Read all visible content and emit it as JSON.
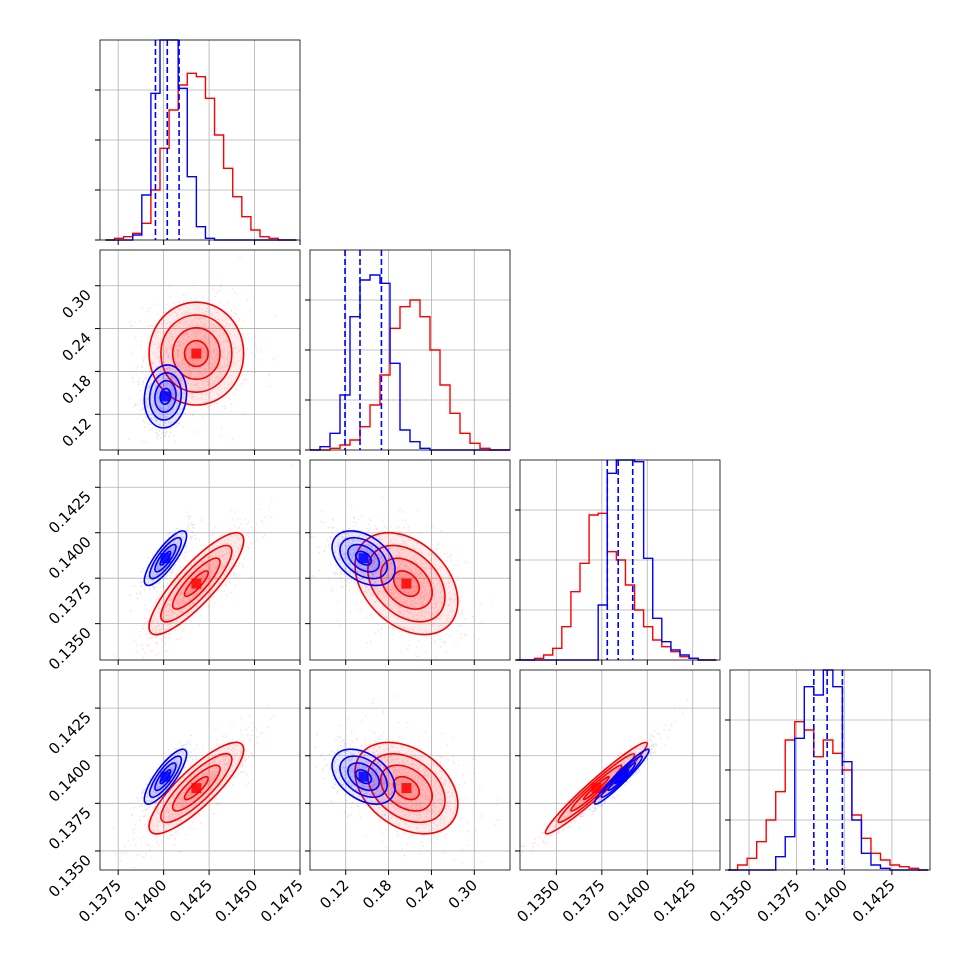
{
  "colors": {
    "blue": "#0000ff",
    "red": "#ff0000",
    "grid": "#b0b0b0",
    "axis": "#000000"
  },
  "chart_data": {
    "type": "corner",
    "grid": true,
    "series": [
      {
        "name": "",
        "color": "#0000ff"
      },
      {
        "name": "",
        "color": "#ff0000"
      }
    ],
    "parameters": [
      {
        "range": [
          0.1365,
          0.1475
        ],
        "ticks": [
          "0.1375",
          "0.1400",
          "0.1425",
          "0.1450",
          "0.1475"
        ],
        "tick_values": [
          0.1375,
          0.14,
          0.1425,
          0.145,
          0.1475
        ]
      },
      {
        "range": [
          0.07,
          0.35
        ],
        "ticks": [
          "0.12",
          "0.18",
          "0.24",
          "0.30"
        ],
        "tick_values": [
          0.12,
          0.18,
          0.24,
          0.3
        ]
      },
      {
        "range": [
          0.133,
          0.144
        ],
        "ticks": [
          "0.1350",
          "0.1375",
          "0.1400",
          "0.1425"
        ],
        "tick_values": [
          0.135,
          0.1375,
          0.14,
          0.1425
        ]
      },
      {
        "range": [
          0.134,
          0.1445
        ],
        "ticks": [
          "0.1350",
          "0.1375",
          "0.1400",
          "0.1425"
        ],
        "tick_values": [
          0.135,
          0.1375,
          0.14,
          0.1425
        ]
      }
    ],
    "histograms": [
      {
        "blue": {
          "edges": [
            0.1368,
            0.1373,
            0.1378,
            0.1383,
            0.1388,
            0.1393,
            0.1398,
            0.1403,
            0.1408,
            0.1413,
            0.1418,
            0.1423,
            0.1428,
            0.1433,
            0.1438,
            0.1443,
            0.1448,
            0.1453,
            0.1458,
            0.1463,
            0.1468,
            0.1473
          ],
          "counts": [
            0,
            0,
            0,
            0.03,
            0.27,
            0.88,
            1.2,
            1.2,
            0.91,
            0.38,
            0.08,
            0.01,
            0,
            0,
            0,
            0,
            0,
            0,
            0,
            0,
            0
          ]
        },
        "red": {
          "edges": [
            0.1368,
            0.1373,
            0.1378,
            0.1383,
            0.1388,
            0.1393,
            0.1398,
            0.1403,
            0.1408,
            0.1413,
            0.1418,
            0.1423,
            0.1428,
            0.1433,
            0.1438,
            0.1443,
            0.1448,
            0.1453,
            0.1458,
            0.1463,
            0.1468,
            0.1473
          ],
          "counts": [
            0,
            0.01,
            0.02,
            0.04,
            0.1,
            0.3,
            0.55,
            0.78,
            0.93,
            1.0,
            0.98,
            0.85,
            0.63,
            0.43,
            0.26,
            0.14,
            0.06,
            0.02,
            0.01,
            0,
            0
          ]
        },
        "quantiles": [
          0.13955,
          0.1402,
          0.14085
        ]
      },
      {
        "blue": {
          "edges": [
            0.07,
            0.084,
            0.098,
            0.112,
            0.126,
            0.14,
            0.154,
            0.168,
            0.182,
            0.196,
            0.21,
            0.224,
            0.238,
            0.252,
            0.266,
            0.28,
            0.294,
            0.308,
            0.322,
            0.336,
            0.35
          ],
          "counts": [
            0,
            0.02,
            0.1,
            0.33,
            0.8,
            1.02,
            1.05,
            1.0,
            0.52,
            0.12,
            0.05,
            0.01,
            0,
            0,
            0,
            0,
            0,
            0,
            0,
            0
          ]
        },
        "red": {
          "edges": [
            0.07,
            0.084,
            0.098,
            0.112,
            0.126,
            0.14,
            0.154,
            0.168,
            0.182,
            0.196,
            0.21,
            0.224,
            0.238,
            0.252,
            0.266,
            0.28,
            0.294,
            0.308,
            0.322,
            0.336,
            0.35
          ],
          "counts": [
            0,
            0,
            0.01,
            0.03,
            0.06,
            0.14,
            0.27,
            0.45,
            0.73,
            0.86,
            0.9,
            0.8,
            0.6,
            0.39,
            0.22,
            0.1,
            0.04,
            0.01,
            0,
            0
          ]
        },
        "quantiles": [
          0.119,
          0.14,
          0.17
        ]
      },
      {
        "blue": {
          "edges": [
            0.1328,
            0.1333,
            0.1338,
            0.1343,
            0.1348,
            0.1353,
            0.1358,
            0.1363,
            0.1368,
            0.1373,
            0.1378,
            0.1383,
            0.1388,
            0.1393,
            0.1398,
            0.1403,
            0.1408,
            0.1413,
            0.1418,
            0.1423,
            0.1428,
            0.1433,
            0.1438
          ],
          "counts": [
            0,
            0,
            0,
            0,
            0,
            0,
            0,
            0,
            0,
            0.33,
            1.12,
            1.2,
            1.2,
            1.19,
            0.61,
            0.25,
            0.11,
            0.06,
            0.03,
            0.01,
            0,
            0
          ]
        },
        "red": {
          "edges": [
            0.1328,
            0.1333,
            0.1338,
            0.1343,
            0.1348,
            0.1353,
            0.1358,
            0.1363,
            0.1368,
            0.1373,
            0.1378,
            0.1383,
            0.1388,
            0.1393,
            0.1398,
            0.1403,
            0.1408,
            0.1413,
            0.1418,
            0.1423,
            0.1428,
            0.1433,
            0.1438
          ],
          "counts": [
            0,
            0,
            0.01,
            0.03,
            0.07,
            0.2,
            0.41,
            0.58,
            0.87,
            0.88,
            0.65,
            0.6,
            0.45,
            0.3,
            0.2,
            0.12,
            0.08,
            0.05,
            0.02,
            0.01,
            0,
            0
          ]
        },
        "quantiles": [
          0.1378,
          0.1384,
          0.1392
        ]
      },
      {
        "blue": {
          "edges": [
            0.1339,
            0.1344,
            0.1349,
            0.1354,
            0.1359,
            0.1364,
            0.1369,
            0.1374,
            0.1379,
            0.1384,
            0.1389,
            0.1394,
            0.1399,
            0.1404,
            0.1409,
            0.1414,
            0.1419,
            0.1424,
            0.1429,
            0.1434,
            0.1439,
            0.1444
          ],
          "counts": [
            0,
            0,
            0,
            0,
            0,
            0.08,
            0.2,
            0.79,
            1.1,
            1.05,
            1.2,
            1.1,
            0.65,
            0.3,
            0.1,
            0.03,
            0.01,
            0,
            0,
            0,
            0
          ]
        },
        "red": {
          "edges": [
            0.1339,
            0.1344,
            0.1349,
            0.1354,
            0.1359,
            0.1364,
            0.1369,
            0.1374,
            0.1379,
            0.1384,
            0.1389,
            0.1394,
            0.1399,
            0.1404,
            0.1409,
            0.1414,
            0.1419,
            0.1424,
            0.1429,
            0.1434,
            0.1439,
            0.1444
          ],
          "counts": [
            0,
            0.03,
            0.07,
            0.17,
            0.3,
            0.47,
            0.78,
            0.89,
            0.84,
            0.68,
            0.78,
            0.7,
            0.6,
            0.33,
            0.19,
            0.1,
            0.06,
            0.03,
            0.02,
            0.01,
            0
          ]
        },
        "quantiles": [
          0.1384,
          0.1391,
          0.1399
        ]
      }
    ],
    "pairs": [
      {
        "row": 1,
        "col": 0,
        "blue": {
          "mean": [
            0.1401,
            0.145
          ],
          "sd": [
            0.00058,
            0.022
          ],
          "rho": 0.1
        },
        "red": {
          "mean": [
            0.1418,
            0.205
          ],
          "sd": [
            0.0013,
            0.036
          ],
          "rho": 0.0
        }
      },
      {
        "row": 2,
        "col": 0,
        "blue": {
          "mean": [
            0.1401,
            0.1386
          ],
          "sd": [
            0.00058,
            0.00075
          ],
          "rho": 0.82
        },
        "red": {
          "mean": [
            0.1418,
            0.1372
          ],
          "sd": [
            0.0013,
            0.0014
          ],
          "rho": 0.85
        }
      },
      {
        "row": 2,
        "col": 1,
        "blue": {
          "mean": [
            0.145,
            0.1386
          ],
          "sd": [
            0.022,
            0.00075
          ],
          "rho": -0.4
        },
        "red": {
          "mean": [
            0.205,
            0.1372
          ],
          "sd": [
            0.036,
            0.0014
          ],
          "rho": -0.35
        }
      },
      {
        "row": 3,
        "col": 0,
        "blue": {
          "mean": [
            0.1401,
            0.1389
          ],
          "sd": [
            0.00058,
            0.00072
          ],
          "rho": 0.82
        },
        "red": {
          "mean": [
            0.1418,
            0.1383
          ],
          "sd": [
            0.0013,
            0.0012
          ],
          "rho": 0.84
        }
      },
      {
        "row": 3,
        "col": 1,
        "blue": {
          "mean": [
            0.145,
            0.1389
          ],
          "sd": [
            0.022,
            0.00072
          ],
          "rho": -0.4
        },
        "red": {
          "mean": [
            0.205,
            0.1383
          ],
          "sd": [
            0.036,
            0.0012
          ],
          "rho": -0.35
        }
      },
      {
        "row": 3,
        "col": 2,
        "blue": {
          "mean": [
            0.1386,
            0.1389
          ],
          "sd": [
            0.00075,
            0.00072
          ],
          "rho": 0.96
        },
        "red": {
          "mean": [
            0.1372,
            0.1383
          ],
          "sd": [
            0.0014,
            0.0012
          ],
          "rho": 0.97
        }
      }
    ],
    "contour_levels_sigma": [
      0.5,
      1.0,
      1.5,
      2.0
    ]
  }
}
